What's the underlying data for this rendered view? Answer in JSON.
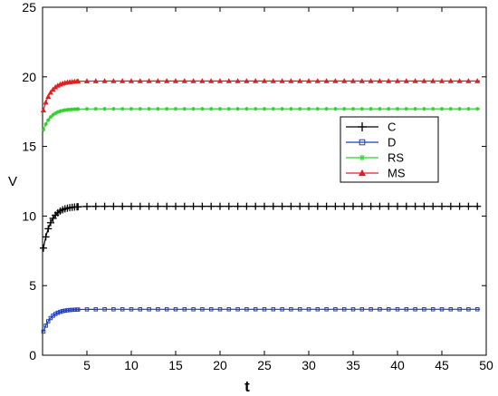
{
  "chart_data": {
    "type": "line",
    "title": "",
    "xlabel": "t",
    "ylabel": "V",
    "xlim": [
      0,
      50
    ],
    "ylim": [
      0,
      25
    ],
    "xticks": [
      5,
      10,
      15,
      20,
      25,
      30,
      35,
      40,
      45,
      50
    ],
    "yticks": [
      0,
      5,
      10,
      15,
      20,
      25
    ],
    "grid": false,
    "legend_position": "center-right",
    "series": [
      {
        "name": "C",
        "color": "#000000",
        "marker": "plus",
        "start": 7.7,
        "end": 10.7,
        "rate": 1.15
      },
      {
        "name": "D",
        "color": "#1f3fbf",
        "marker": "square",
        "start": 1.7,
        "end": 3.3,
        "rate": 1.15
      },
      {
        "name": "RS",
        "color": "#2fcf2f",
        "marker": "asterisk",
        "start": 16.2,
        "end": 17.7,
        "rate": 1.15
      },
      {
        "name": "MS",
        "color": "#e02020",
        "marker": "triangle",
        "start": 17.6,
        "end": 19.7,
        "rate": 1.15
      }
    ],
    "x_start": 0.1,
    "x_end": 49.3
  }
}
